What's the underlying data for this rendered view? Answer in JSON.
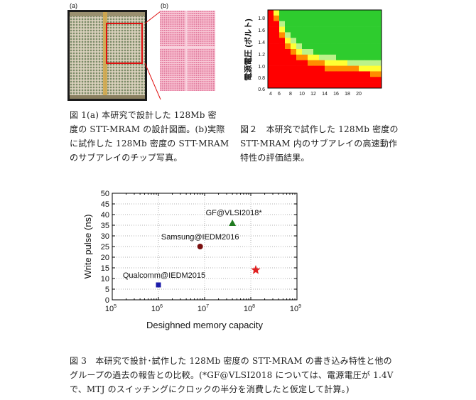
{
  "fig1": {
    "label_a": "(a)",
    "label_b": "(b)",
    "caption": [
      "図 1(a) 本研究で設計した 128Mb 密",
      "度の STT-MRAM の設計図面。(b)実際",
      "に試作した 128Mb 密度の STT-MRAM",
      "のサブアレイのチップ写真。"
    ]
  },
  "fig2": {
    "caption": [
      "図２　本研究で試作した 128Mb 密度の",
      "STT-MRAM 内のサブアレイの高速動作",
      "特性の評価結果。"
    ],
    "colors": {
      "pass": "#2ecc2e",
      "fail": "#ff0000",
      "orange": "#ff8c00",
      "yellow": "#ffff33",
      "light": "#bbf28a"
    }
  },
  "chart_data": {
    "type": "scatter",
    "xscale": "log",
    "xlim": [
      100000,
      1000000000
    ],
    "ylim": [
      0,
      50
    ],
    "xlabel": "Desighned memory capacity",
    "ylabel": "Write pulse (ns)",
    "x_ticks": [
      {
        "value": 100000,
        "base": "10",
        "exp": "5"
      },
      {
        "value": 1000000,
        "base": "10",
        "exp": "6"
      },
      {
        "value": 10000000,
        "base": "10",
        "exp": "7"
      },
      {
        "value": 100000000,
        "base": "10",
        "exp": "8"
      },
      {
        "value": 1000000000,
        "base": "10",
        "exp": "9"
      }
    ],
    "y_ticks": [
      0,
      5,
      10,
      15,
      20,
      25,
      30,
      35,
      40,
      45,
      50
    ],
    "points": [
      {
        "label": "Qualcomm@IEDM2015",
        "x": 1000000,
        "y": 7,
        "marker": "square",
        "color": "#1a1aa8"
      },
      {
        "label": "Samsung@IEDM2016",
        "x": 8000000,
        "y": 25,
        "marker": "circle",
        "color": "#7a1010"
      },
      {
        "label": "GF@VLSI2018*",
        "x": 40000000,
        "y": 36,
        "marker": "triangle",
        "color": "#1f7a1f"
      },
      {
        "label": "",
        "x": 128000000,
        "y": 14,
        "marker": "star",
        "color": "#e02020"
      }
    ]
  },
  "fig3": {
    "caption": [
      "図 3　本研究で設計･試作した 128Mb 密度の STT-MRAM の書き込み特性と他の",
      "グループの過去の報告との比較。(*GF@VLSI2018 については、電源電圧が 1.4V",
      "で、MTJ のスイッチングにクロックの半分を消費したと仮定して計算。)"
    ]
  }
}
